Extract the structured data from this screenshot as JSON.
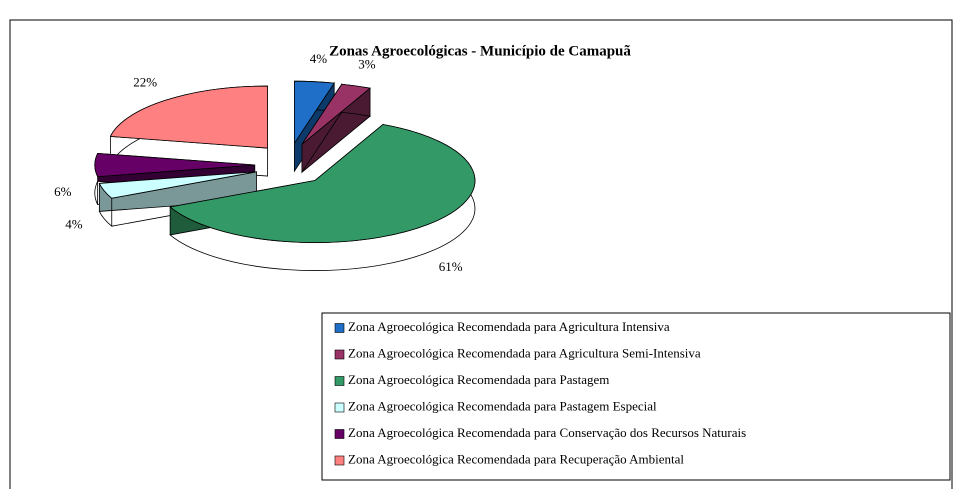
{
  "chart_data": {
    "type": "pie",
    "title": "Zonas Agroecológicas - Município de Camapuã",
    "categories": [
      "Zona Agroecológica Recomendada para Agricultura Intensiva",
      "Zona Agroecológica Recomendada para Agricultura Semi-Intensiva",
      "Zona Agroecológica Recomendada para Pastagem",
      "Zona Agroecológica Recomendada para Pastagem Especial",
      "Zona Agroecológica Recomendada para Conservação dos Recursos Naturais",
      "Zona Agroecológica Recomendada para Recuperação Ambiental"
    ],
    "values": [
      4,
      3,
      61,
      4,
      6,
      22
    ],
    "value_labels": [
      "4%",
      "3%",
      "61%",
      "4%",
      "6%",
      "22%"
    ],
    "colors": [
      "#1f6fc9",
      "#993366",
      "#339966",
      "#ccffff",
      "#660066",
      "#ff8080"
    ],
    "side_colors": [
      "#0b3a6b",
      "#4a1a33",
      "#1e5c3c",
      "#7a9898",
      "#330033",
      "#8c4a40"
    ],
    "legend": "bottom-right"
  }
}
